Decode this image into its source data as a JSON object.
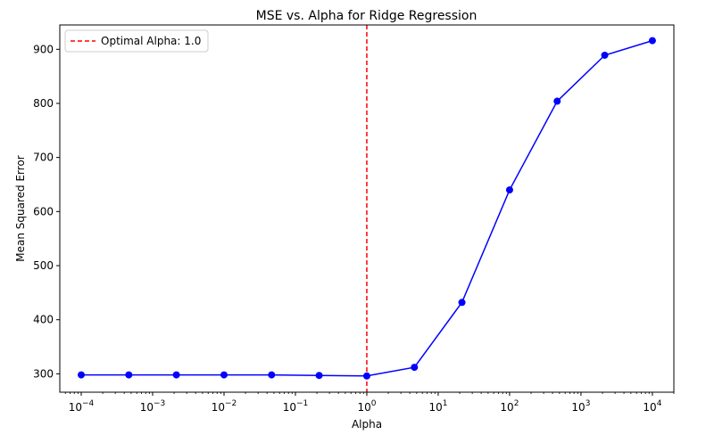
{
  "chart_data": {
    "type": "line",
    "title": "MSE vs. Alpha for Ridge Regression",
    "xlabel": "Alpha",
    "ylabel": "Mean Squared Error",
    "xscale": "log",
    "xlim": [
      5.01e-05,
      20000
    ],
    "ylim": [
      266,
      945
    ],
    "x_ticks": [
      {
        "value": 0.0001,
        "base": "10",
        "exp": "−4"
      },
      {
        "value": 0.001,
        "base": "10",
        "exp": "−3"
      },
      {
        "value": 0.01,
        "base": "10",
        "exp": "−2"
      },
      {
        "value": 0.1,
        "base": "10",
        "exp": "−1"
      },
      {
        "value": 1,
        "base": "10",
        "exp": "0"
      },
      {
        "value": 10,
        "base": "10",
        "exp": "1"
      },
      {
        "value": 100,
        "base": "10",
        "exp": "2"
      },
      {
        "value": 1000,
        "base": "10",
        "exp": "3"
      },
      {
        "value": 10000,
        "base": "10",
        "exp": "4"
      }
    ],
    "y_ticks": [
      300,
      400,
      500,
      600,
      700,
      800,
      900
    ],
    "series": [
      {
        "color": "#0000ff",
        "marker": "circle",
        "x": [
          0.0001,
          0.000464,
          0.00215,
          0.01,
          0.0464,
          0.215,
          1,
          4.64,
          21.5,
          100,
          464,
          2150,
          10000
        ],
        "y": [
          298,
          298,
          298,
          298,
          298,
          297,
          296,
          312,
          432,
          640,
          804,
          889,
          916
        ]
      }
    ],
    "vline": {
      "x": 1.0,
      "color": "#ff0000",
      "style": "dashed",
      "label": "Optimal Alpha: 1.0"
    },
    "legend": {
      "position": "top-left"
    },
    "grid": false
  }
}
